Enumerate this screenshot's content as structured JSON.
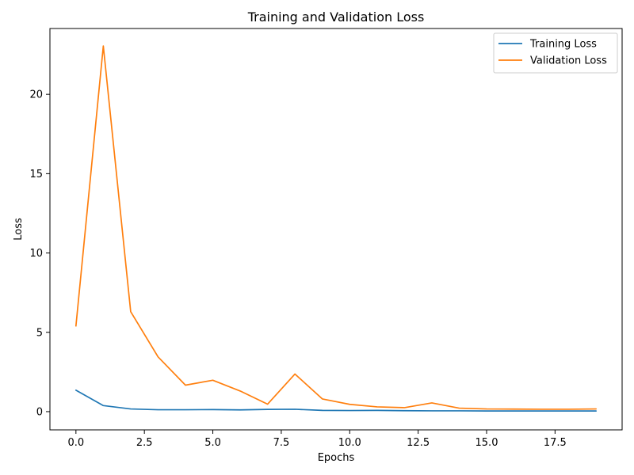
{
  "chart_data": {
    "type": "line",
    "title": "Training and Validation Loss",
    "xlabel": "Epochs",
    "ylabel": "Loss",
    "xlim": [
      -0.95,
      19.95
    ],
    "ylim": [
      -1.15,
      24.15
    ],
    "xticks": [
      {
        "value": 0.0,
        "label": "0.0"
      },
      {
        "value": 2.5,
        "label": "2.5"
      },
      {
        "value": 5.0,
        "label": "5.0"
      },
      {
        "value": 7.5,
        "label": "7.5"
      },
      {
        "value": 10.0,
        "label": "10.0"
      },
      {
        "value": 12.5,
        "label": "12.5"
      },
      {
        "value": 15.0,
        "label": "15.0"
      },
      {
        "value": 17.5,
        "label": "17.5"
      }
    ],
    "yticks": [
      {
        "value": 0,
        "label": "0"
      },
      {
        "value": 5,
        "label": "5"
      },
      {
        "value": 10,
        "label": "10"
      },
      {
        "value": 15,
        "label": "15"
      },
      {
        "value": 20,
        "label": "20"
      }
    ],
    "grid": false,
    "legend_position": "top-right",
    "x": [
      0,
      1,
      2,
      3,
      4,
      5,
      6,
      7,
      8,
      9,
      10,
      11,
      12,
      13,
      14,
      15,
      16,
      17,
      18,
      19
    ],
    "series": [
      {
        "name": "Training Loss",
        "color": "#1f77b4",
        "values": [
          1.35,
          0.38,
          0.17,
          0.12,
          0.12,
          0.13,
          0.11,
          0.14,
          0.15,
          0.08,
          0.07,
          0.08,
          0.06,
          0.05,
          0.05,
          0.04,
          0.04,
          0.04,
          0.04,
          0.04
        ]
      },
      {
        "name": "Validation Loss",
        "color": "#ff7f0e",
        "values": [
          5.4,
          23.05,
          6.3,
          3.45,
          1.67,
          1.98,
          1.3,
          0.47,
          2.37,
          0.8,
          0.46,
          0.3,
          0.25,
          0.55,
          0.22,
          0.17,
          0.16,
          0.15,
          0.15,
          0.17
        ]
      }
    ]
  }
}
